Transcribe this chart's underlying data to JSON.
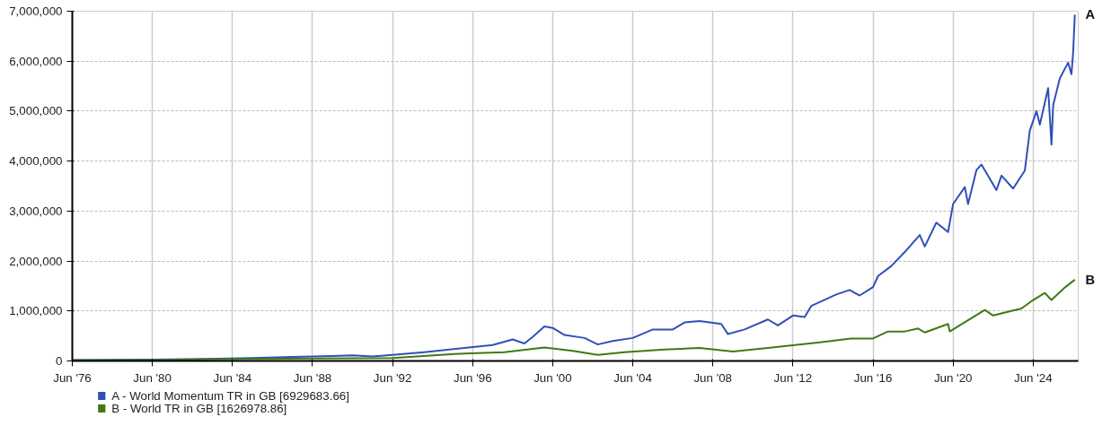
{
  "chart_data": {
    "type": "line",
    "xlim": [
      "1976-06",
      "2026-09"
    ],
    "xticks": [
      {
        "value": "1976-06",
        "label": "Jun '76"
      },
      {
        "value": "1980-06",
        "label": "Jun '80"
      },
      {
        "value": "1984-06",
        "label": "Jun '84"
      },
      {
        "value": "1988-06",
        "label": "Jun '88"
      },
      {
        "value": "1992-06",
        "label": "Jun '92"
      },
      {
        "value": "1996-06",
        "label": "Jun '96"
      },
      {
        "value": "2000-06",
        "label": "Jun '00"
      },
      {
        "value": "2004-06",
        "label": "Jun '04"
      },
      {
        "value": "2008-06",
        "label": "Jun '08"
      },
      {
        "value": "2012-06",
        "label": "Jun '12"
      },
      {
        "value": "2016-06",
        "label": "Jun '16"
      },
      {
        "value": "2020-06",
        "label": "Jun '20"
      },
      {
        "value": "2024-06",
        "label": "Jun '24"
      }
    ],
    "ylim": [
      0,
      7000000
    ],
    "yticks": [
      0,
      {
        "value": 1000000,
        "label": "1,000,000"
      },
      {
        "value": 2000000,
        "label": "2,000,000"
      },
      {
        "value": 3000000,
        "label": "3,000,000"
      },
      {
        "value": 4000000,
        "label": "4,000,000"
      },
      {
        "value": 5000000,
        "label": "5,000,000"
      },
      {
        "value": 6000000,
        "label": "6,000,000"
      },
      {
        "value": 7000000,
        "label": "7,000,000"
      }
    ],
    "grid": true,
    "legend": "bottom left",
    "annotations": [
      "A",
      "B"
    ],
    "series": [
      {
        "name": "A - World Momentum TR in GB [6929683.66]",
        "color": "#3050b8",
        "x": [
          "1976-06",
          "1980-06",
          "1983-01",
          "1985-06",
          "1987-06",
          "1989-06",
          "1990-06",
          "1991-06",
          "1992-06",
          "1994-01",
          "1996-01",
          "1997-06",
          "1998-06",
          "1999-01",
          "1999-06",
          "2000-01",
          "2000-06",
          "2001-01",
          "2002-01",
          "2002-09",
          "2003-06",
          "2004-06",
          "2005-06",
          "2006-06",
          "2007-01",
          "2007-10",
          "2008-11",
          "2009-03",
          "2010-01",
          "2011-03",
          "2011-09",
          "2012-06",
          "2013-01",
          "2013-05",
          "2014-08",
          "2015-04",
          "2015-10",
          "2016-06",
          "2016-09",
          "2017-05",
          "2018-01",
          "2018-10",
          "2019-01",
          "2019-08",
          "2020-03",
          "2020-06",
          "2021-01",
          "2021-03",
          "2021-08",
          "2021-11",
          "2022-08",
          "2022-11",
          "2023-06",
          "2024-01",
          "2024-04",
          "2024-08",
          "2024-10",
          "2025-03",
          "2025-05",
          "2025-06",
          "2025-10",
          "2026-03",
          "2026-05",
          "2026-06",
          "2026-07"
        ],
        "values": [
          20000,
          25000,
          40000,
          60000,
          80000,
          100000,
          110000,
          90000,
          120000,
          176000,
          260000,
          320000,
          430000,
          350000,
          480000,
          690000,
          660000,
          520000,
          460000,
          330000,
          400000,
          460000,
          630000,
          630000,
          770000,
          800000,
          740000,
          540000,
          630000,
          830000,
          710000,
          910000,
          880000,
          1100000,
          1330000,
          1420000,
          1310000,
          1480000,
          1700000,
          1900000,
          2180000,
          2520000,
          2290000,
          2770000,
          2580000,
          3140000,
          3480000,
          3140000,
          3820000,
          3930000,
          3420000,
          3710000,
          3450000,
          3810000,
          4610000,
          5000000,
          4730000,
          5460000,
          4330000,
          5120000,
          5660000,
          5970000,
          5740000,
          6190000,
          6929683.66
        ]
      },
      {
        "name": "B - World TR in GB [1626978.86]",
        "color": "#3f7a12",
        "x": [
          "1976-06",
          "1980-06",
          "1984-06",
          "1988-06",
          "1992-06",
          "1996-01",
          "1998-01",
          "2000-01",
          "2001-06",
          "2002-09",
          "2004-01",
          "2006-01",
          "2007-10",
          "2009-06",
          "2011-03",
          "2013-09",
          "2015-05",
          "2016-06",
          "2017-03",
          "2018-01",
          "2018-09",
          "2019-01",
          "2020-03",
          "2020-04",
          "2022-01",
          "2022-06",
          "2023-11",
          "2024-06",
          "2025-01",
          "2025-05",
          "2026-01",
          "2026-07"
        ],
        "values": [
          15000,
          20000,
          35000,
          50000,
          60000,
          150000,
          175000,
          270000,
          200000,
          120000,
          175000,
          230000,
          260000,
          190000,
          260000,
          370000,
          450000,
          450000,
          590000,
          590000,
          650000,
          570000,
          740000,
          590000,
          1020000,
          910000,
          1050000,
          1220000,
          1360000,
          1220000,
          1470000,
          1626978.86
        ]
      }
    ]
  }
}
